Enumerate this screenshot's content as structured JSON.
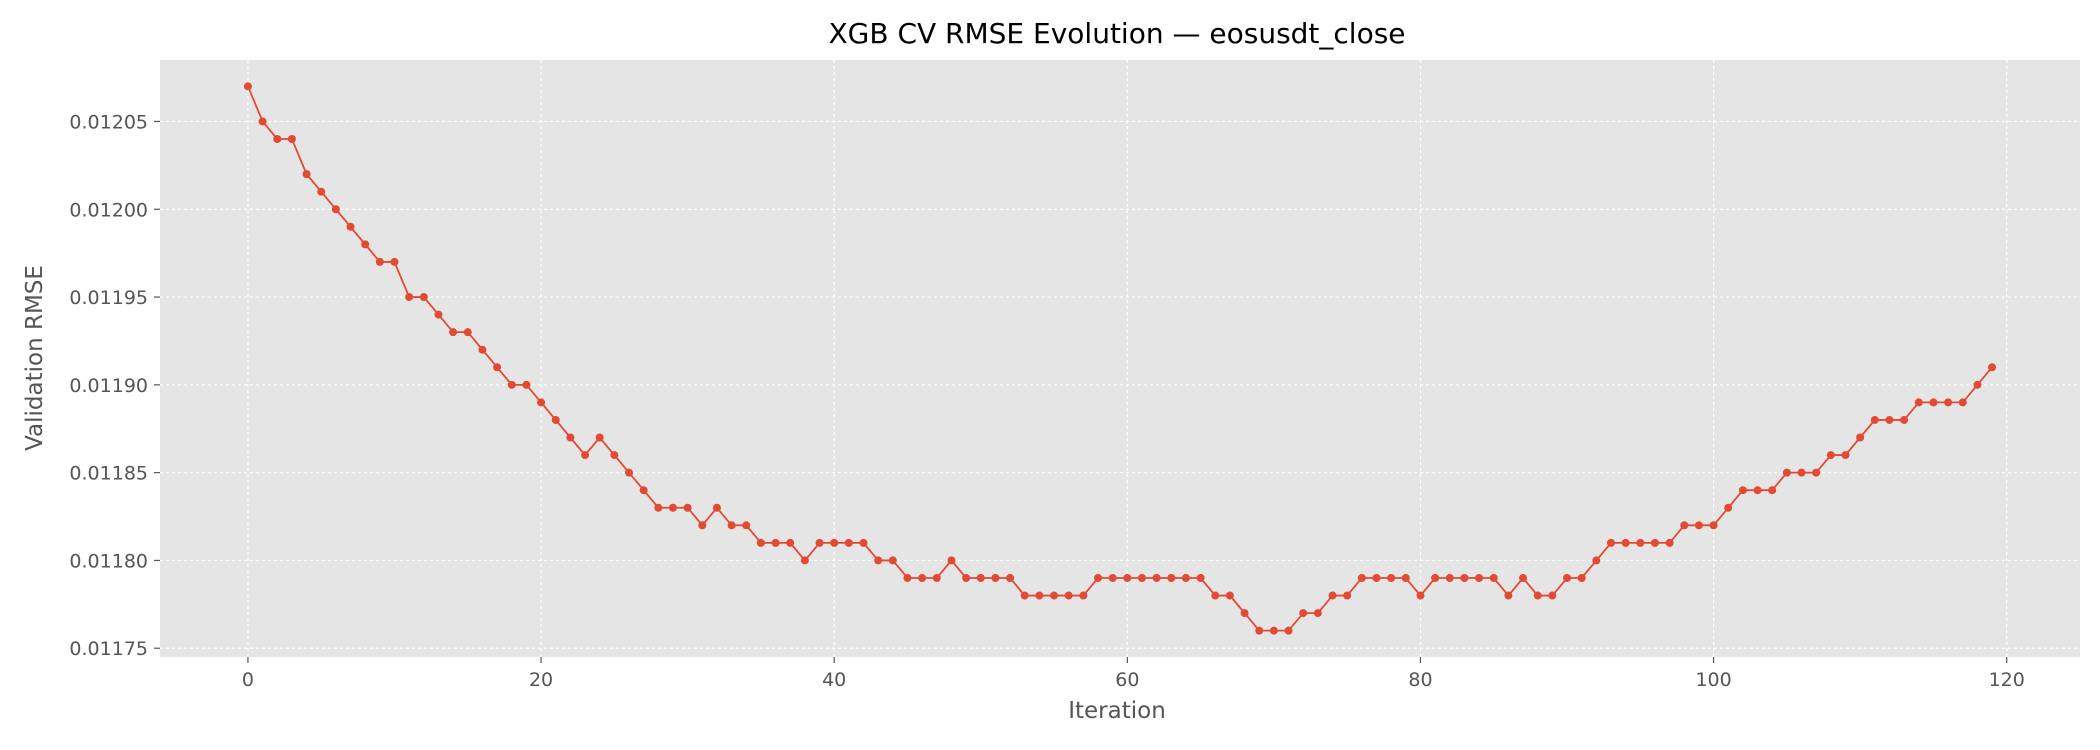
{
  "chart_data": {
    "type": "line",
    "title": "XGB CV RMSE Evolution — eosusdt_close",
    "xlabel": "Iteration",
    "ylabel": "Validation RMSE",
    "xlim": [
      -6,
      125
    ],
    "ylim": [
      0.011745,
      0.012085
    ],
    "xticks": [
      0,
      20,
      40,
      60,
      80,
      100,
      120
    ],
    "xtick_labels": [
      "0",
      "20",
      "40",
      "60",
      "80",
      "100",
      "120"
    ],
    "yticks": [
      0.01175,
      0.0118,
      0.01185,
      0.0119,
      0.01195,
      0.012,
      0.01205
    ],
    "ytick_labels": [
      "0.01175",
      "0.01180",
      "0.01185",
      "0.01190",
      "0.01195",
      "0.01200",
      "0.01205"
    ],
    "grid": true,
    "series": [
      {
        "color": "#E24A33",
        "marker": "circle",
        "values": [
          0.01207,
          0.01205,
          0.01204,
          0.01204,
          0.01202,
          0.01201,
          0.012,
          0.01199,
          0.01198,
          0.01197,
          0.01197,
          0.01195,
          0.01195,
          0.01194,
          0.01193,
          0.01193,
          0.01192,
          0.01191,
          0.0119,
          0.0119,
          0.01189,
          0.01188,
          0.01187,
          0.01186,
          0.01187,
          0.01186,
          0.01185,
          0.01184,
          0.01183,
          0.01183,
          0.01183,
          0.01182,
          0.01183,
          0.01182,
          0.01182,
          0.01181,
          0.01181,
          0.01181,
          0.0118,
          0.01181,
          0.01181,
          0.01181,
          0.01181,
          0.0118,
          0.0118,
          0.01179,
          0.01179,
          0.01179,
          0.0118,
          0.01179,
          0.01179,
          0.01179,
          0.01179,
          0.01178,
          0.01178,
          0.01178,
          0.01178,
          0.01178,
          0.01179,
          0.01179,
          0.01179,
          0.01179,
          0.01179,
          0.01179,
          0.01179,
          0.01179,
          0.01178,
          0.01178,
          0.01177,
          0.01176,
          0.01176,
          0.01176,
          0.01177,
          0.01177,
          0.01178,
          0.01178,
          0.01179,
          0.01179,
          0.01179,
          0.01179,
          0.01178,
          0.01179,
          0.01179,
          0.01179,
          0.01179,
          0.01179,
          0.01178,
          0.01179,
          0.01178,
          0.01178,
          0.01179,
          0.01179,
          0.0118,
          0.01181,
          0.01181,
          0.01181,
          0.01181,
          0.01181,
          0.01182,
          0.01182,
          0.01182,
          0.01183,
          0.01184,
          0.01184,
          0.01184,
          0.01185,
          0.01185,
          0.01185,
          0.01186,
          0.01186,
          0.01187,
          0.01188,
          0.01188,
          0.01188,
          0.01189,
          0.01189,
          0.01189,
          0.01189,
          0.0119,
          0.01191
        ]
      }
    ],
    "colors": {
      "plot_background": "#E5E5E5",
      "grid": "#FFFFFF"
    }
  }
}
